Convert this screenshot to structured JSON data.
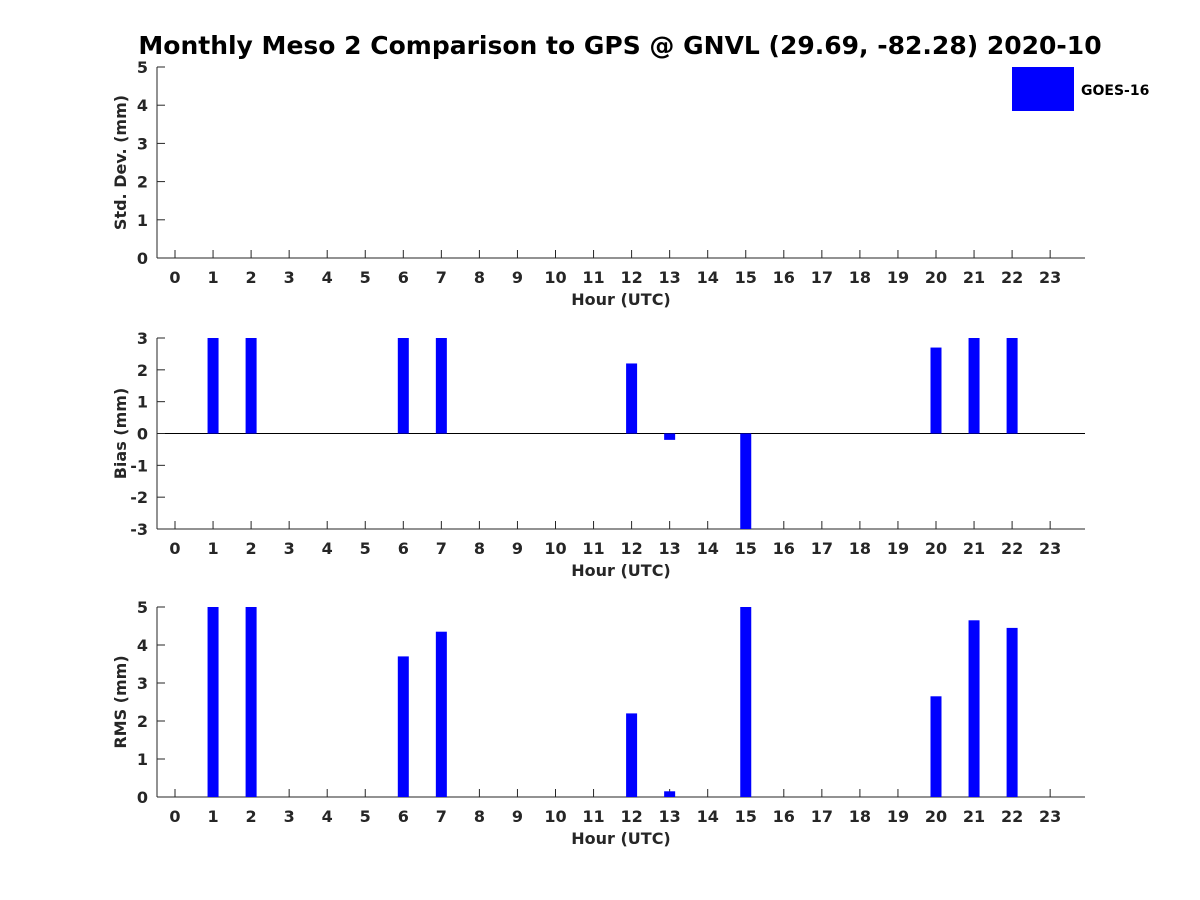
{
  "title": "Monthly Meso 2 Comparison to GPS @ GNVL (29.69, -82.28) 2020-10",
  "legend": {
    "label": "GOES-16",
    "color": "#0000ff",
    "placement": "top-right"
  },
  "chart_data": [
    {
      "type": "bar",
      "ylabel": "Std. Dev. (mm)",
      "xlabel": "Hour (UTC)",
      "ylim": [
        0,
        5
      ],
      "yticks": [
        0,
        1,
        2,
        3,
        4,
        5
      ],
      "categories": [
        "0",
        "1",
        "2",
        "3",
        "4",
        "5",
        "6",
        "7",
        "8",
        "9",
        "10",
        "11",
        "12",
        "13",
        "14",
        "15",
        "16",
        "17",
        "18",
        "19",
        "20",
        "21",
        "22",
        "23"
      ],
      "series": [
        {
          "name": "GOES-16",
          "values": [
            null,
            null,
            null,
            null,
            null,
            null,
            null,
            null,
            null,
            null,
            null,
            null,
            null,
            null,
            null,
            null,
            null,
            null,
            null,
            null,
            null,
            null,
            null,
            null
          ]
        }
      ],
      "color": "#0000ff",
      "grid": false
    },
    {
      "type": "bar",
      "ylabel": "Bias (mm)",
      "xlabel": "Hour (UTC)",
      "ylim": [
        -3,
        3
      ],
      "yticks": [
        -3,
        -2,
        -1,
        0,
        1,
        2,
        3
      ],
      "zero_line": true,
      "categories": [
        "0",
        "1",
        "2",
        "3",
        "4",
        "5",
        "6",
        "7",
        "8",
        "9",
        "10",
        "11",
        "12",
        "13",
        "14",
        "15",
        "16",
        "17",
        "18",
        "19",
        "20",
        "21",
        "22",
        "23"
      ],
      "series": [
        {
          "name": "GOES-16",
          "values": [
            null,
            3.0,
            3.0,
            null,
            null,
            null,
            3.0,
            3.0,
            null,
            null,
            null,
            null,
            2.2,
            -0.2,
            null,
            -3.0,
            null,
            null,
            null,
            null,
            2.7,
            3.0,
            3.0,
            null
          ]
        }
      ],
      "color": "#0000ff",
      "grid": false
    },
    {
      "type": "bar",
      "ylabel": "RMS (mm)",
      "xlabel": "Hour (UTC)",
      "ylim": [
        0,
        5
      ],
      "yticks": [
        0,
        1,
        2,
        3,
        4,
        5
      ],
      "categories": [
        "0",
        "1",
        "2",
        "3",
        "4",
        "5",
        "6",
        "7",
        "8",
        "9",
        "10",
        "11",
        "12",
        "13",
        "14",
        "15",
        "16",
        "17",
        "18",
        "19",
        "20",
        "21",
        "22",
        "23"
      ],
      "series": [
        {
          "name": "GOES-16",
          "values": [
            null,
            5.0,
            5.0,
            null,
            null,
            null,
            3.7,
            4.35,
            null,
            null,
            null,
            null,
            2.2,
            0.15,
            null,
            5.0,
            null,
            null,
            null,
            null,
            2.65,
            4.65,
            4.45,
            null
          ]
        }
      ],
      "color": "#0000ff",
      "grid": false
    }
  ]
}
